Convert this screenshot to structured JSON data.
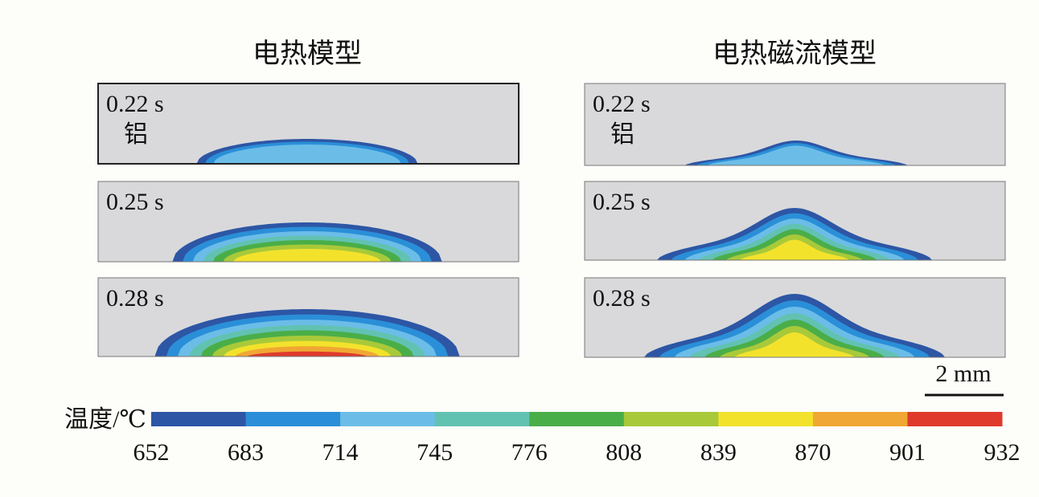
{
  "titles": [
    "电热模型",
    "电热磁流模型"
  ],
  "panels": [
    {
      "time": "0.22 s",
      "material": "铝"
    },
    {
      "time": "0.25 s"
    },
    {
      "time": "0.28 s"
    },
    {
      "time": "0.22 s",
      "material": "铝"
    },
    {
      "time": "0.25 s"
    },
    {
      "time": "0.28 s"
    }
  ],
  "scale_bar": "2 mm",
  "colorbar": {
    "label": "温度/℃",
    "ticks": [
      652,
      683,
      714,
      745,
      776,
      808,
      839,
      870,
      901,
      932
    ],
    "colors": [
      "#2d56a5",
      "#2a8fd8",
      "#6bbde8",
      "#62c2b2",
      "#4aae48",
      "#a8c93a",
      "#f3e22c",
      "#f0a733",
      "#df3a2c"
    ]
  }
}
